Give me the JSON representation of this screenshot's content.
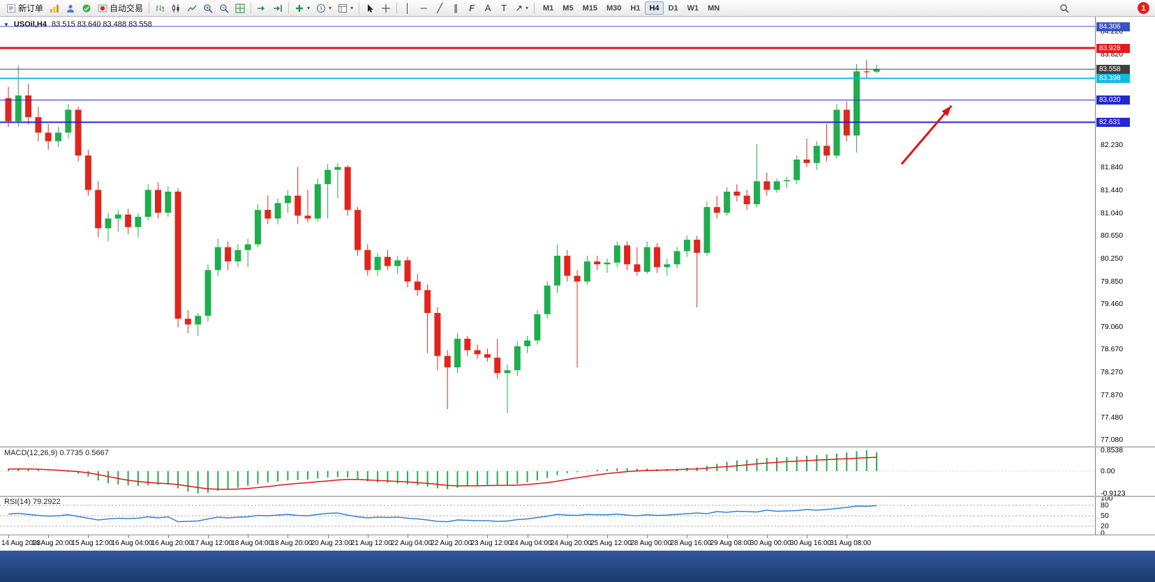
{
  "toolbar": {
    "new_order_label": "新订单",
    "autotrading_label": "自动交易",
    "timeframes": [
      "M1",
      "M5",
      "M15",
      "M30",
      "H1",
      "H4",
      "D1",
      "W1",
      "MN"
    ],
    "active_timeframe": "H4",
    "notification_count": "1"
  },
  "icons": {
    "collapse_arrow": "▼",
    "dropdown_caret": "▾",
    "vertical_line": "│",
    "horizontal_line": "─",
    "trendline": "╱",
    "channel": "∥",
    "fibonacci": "F",
    "text_tool": "A",
    "text_label_tool": "T",
    "arrow_tool": "↗"
  },
  "chart": {
    "symbol_period": "USOil,H4",
    "quotes": "83.515 83.640 83.488 83.558"
  },
  "indicator_labels": {
    "macd": "MACD(12,26,9) 0.7735 0.5667",
    "rsi": "RSI(14) 79.2922"
  },
  "price_scale": {
    "plain_labels": [
      "84.220",
      "83.820",
      "82.230",
      "81.840",
      "81.440",
      "81.040",
      "80.650",
      "80.250",
      "79.850",
      "79.460",
      "79.060",
      "78.670",
      "78.270",
      "77.870",
      "77.480",
      "77.080"
    ],
    "badges": [
      {
        "text": "84.306",
        "color": "#3b54c4"
      },
      {
        "text": "83.928",
        "color": "#e11b1b"
      },
      {
        "text": "83.558",
        "color": "#404040"
      },
      {
        "text": "83.398",
        "color": "#12b9e6"
      },
      {
        "text": "83.020",
        "color": "#2327d0"
      },
      {
        "text": "82.631",
        "color": "#2327d0"
      }
    ],
    "macd_scale": [
      "0.8538",
      "0.00",
      "-0.9123"
    ],
    "rsi_scale": [
      "100",
      "80",
      "50",
      "20",
      "0"
    ]
  },
  "chart_data": {
    "type": "candlestick",
    "symbol": "USOil",
    "period": "H4",
    "title": "USOil,H4",
    "current_ohlc": {
      "open": 83.515,
      "high": 83.64,
      "low": 83.488,
      "close": 83.558
    },
    "price_axis": {
      "min": 77.0,
      "max": 84.45
    },
    "x_labels": [
      "14 Aug 2023",
      "14 Aug 20:00",
      "15 Aug 12:00",
      "16 Aug 04:00",
      "16 Aug 20:00",
      "17 Aug 12:00",
      "18 Aug 04:00",
      "18 Aug 20:00",
      "20 Aug 23:00",
      "21 Aug 12:00",
      "22 Aug 04:00",
      "22 Aug 20:00",
      "23 Aug 12:00",
      "24 Aug 04:00",
      "24 Aug 20:00",
      "25 Aug 12:00",
      "28 Aug 00:00",
      "28 Aug 16:00",
      "29 Aug 08:00",
      "30 Aug 00:00",
      "30 Aug 16:00",
      "31 Aug 08:00"
    ],
    "hlines": [
      {
        "price": 84.306,
        "color": "#3b54c4",
        "width": 1
      },
      {
        "price": 83.928,
        "color": "#e11b1b",
        "width": 3
      },
      {
        "price": 83.558,
        "color": "#404040",
        "width": 1
      },
      {
        "price": 83.398,
        "color": "#12b9e6",
        "width": 2
      },
      {
        "price": 83.02,
        "color": "#2327d0",
        "width": 1
      },
      {
        "price": 82.631,
        "color": "#2327d0",
        "width": 2
      }
    ],
    "candles": [
      [
        83.05,
        83.25,
        82.55,
        82.65
      ],
      [
        82.65,
        83.62,
        82.55,
        83.1
      ],
      [
        83.1,
        83.3,
        82.6,
        82.72
      ],
      [
        82.72,
        82.9,
        82.3,
        82.45
      ],
      [
        82.45,
        82.6,
        82.15,
        82.3
      ],
      [
        82.3,
        82.55,
        82.2,
        82.45
      ],
      [
        82.45,
        82.95,
        82.35,
        82.85
      ],
      [
        82.85,
        82.9,
        81.95,
        82.05
      ],
      [
        82.05,
        82.15,
        81.35,
        81.45
      ],
      [
        81.45,
        81.6,
        80.62,
        80.78
      ],
      [
        80.78,
        81.05,
        80.55,
        80.95
      ],
      [
        80.95,
        81.1,
        80.72,
        81.02
      ],
      [
        81.02,
        81.12,
        80.68,
        80.8
      ],
      [
        80.8,
        81.05,
        80.62,
        80.98
      ],
      [
        80.98,
        81.55,
        80.92,
        81.45
      ],
      [
        81.45,
        81.58,
        80.95,
        81.05
      ],
      [
        81.05,
        81.52,
        80.98,
        81.42
      ],
      [
        81.42,
        81.48,
        79.05,
        79.2
      ],
      [
        79.2,
        79.35,
        78.95,
        79.1
      ],
      [
        79.1,
        79.3,
        78.9,
        79.25
      ],
      [
        79.25,
        80.15,
        79.15,
        80.05
      ],
      [
        80.05,
        80.6,
        79.95,
        80.45
      ],
      [
        80.45,
        80.55,
        80.05,
        80.2
      ],
      [
        80.2,
        80.5,
        80.1,
        80.4
      ],
      [
        80.4,
        80.6,
        80.1,
        80.5
      ],
      [
        80.5,
        81.2,
        80.45,
        81.1
      ],
      [
        81.1,
        81.35,
        80.85,
        80.95
      ],
      [
        80.95,
        81.3,
        80.85,
        81.22
      ],
      [
        81.22,
        81.45,
        81.05,
        81.35
      ],
      [
        81.35,
        81.85,
        80.85,
        81.0
      ],
      [
        81.0,
        81.45,
        80.88,
        80.95
      ],
      [
        80.95,
        81.65,
        80.9,
        81.55
      ],
      [
        81.55,
        81.9,
        80.95,
        81.8
      ],
      [
        81.8,
        81.92,
        81.3,
        81.85
      ],
      [
        81.85,
        81.88,
        81.0,
        81.1
      ],
      [
        81.1,
        81.15,
        80.3,
        80.4
      ],
      [
        80.4,
        80.5,
        79.95,
        80.05
      ],
      [
        80.05,
        80.35,
        79.95,
        80.28
      ],
      [
        80.28,
        80.4,
        80.05,
        80.12
      ],
      [
        80.12,
        80.3,
        79.98,
        80.22
      ],
      [
        80.22,
        80.28,
        79.75,
        79.85
      ],
      [
        79.85,
        79.98,
        79.6,
        79.7
      ],
      [
        79.7,
        79.8,
        78.6,
        79.3
      ],
      [
        79.3,
        79.4,
        78.3,
        78.55
      ],
      [
        78.55,
        78.65,
        77.62,
        78.35
      ],
      [
        78.35,
        78.95,
        78.25,
        78.85
      ],
      [
        78.85,
        78.9,
        78.55,
        78.65
      ],
      [
        78.65,
        78.75,
        78.5,
        78.58
      ],
      [
        78.58,
        78.68,
        78.45,
        78.52
      ],
      [
        78.52,
        78.85,
        78.15,
        78.25
      ],
      [
        78.25,
        78.4,
        77.55,
        78.3
      ],
      [
        78.3,
        78.8,
        78.2,
        78.72
      ],
      [
        78.72,
        78.9,
        78.6,
        78.82
      ],
      [
        78.82,
        79.35,
        78.75,
        79.28
      ],
      [
        79.28,
        79.85,
        79.2,
        79.78
      ],
      [
        79.78,
        80.5,
        79.65,
        80.3
      ],
      [
        80.3,
        80.4,
        79.85,
        79.95
      ],
      [
        79.95,
        80.05,
        78.35,
        79.85
      ],
      [
        79.85,
        80.3,
        79.8,
        80.2
      ],
      [
        80.2,
        80.3,
        80.05,
        80.15
      ],
      [
        80.15,
        80.25,
        80.0,
        80.18
      ],
      [
        80.18,
        80.55,
        80.1,
        80.48
      ],
      [
        80.48,
        80.55,
        80.05,
        80.15
      ],
      [
        80.15,
        80.45,
        79.95,
        80.02
      ],
      [
        80.02,
        80.55,
        79.98,
        80.45
      ],
      [
        80.45,
        80.52,
        80.0,
        80.1
      ],
      [
        80.1,
        80.25,
        79.95,
        80.15
      ],
      [
        80.15,
        80.45,
        80.08,
        80.38
      ],
      [
        80.38,
        80.65,
        80.28,
        80.58
      ],
      [
        80.58,
        80.65,
        79.4,
        80.35
      ],
      [
        80.35,
        81.25,
        80.3,
        81.15
      ],
      [
        81.15,
        81.35,
        80.95,
        81.05
      ],
      [
        81.05,
        81.5,
        81.0,
        81.42
      ],
      [
        81.42,
        81.55,
        81.25,
        81.35
      ],
      [
        81.35,
        81.45,
        81.1,
        81.2
      ],
      [
        81.2,
        82.25,
        81.15,
        81.6
      ],
      [
        81.6,
        81.75,
        81.35,
        81.45
      ],
      [
        81.45,
        81.65,
        81.4,
        81.6
      ],
      [
        81.6,
        81.68,
        81.48,
        81.62
      ],
      [
        81.62,
        82.05,
        81.55,
        81.98
      ],
      [
        81.98,
        82.35,
        81.85,
        81.92
      ],
      [
        81.92,
        82.3,
        81.8,
        82.22
      ],
      [
        82.22,
        82.6,
        81.95,
        82.05
      ],
      [
        82.05,
        82.95,
        82.0,
        82.85
      ],
      [
        82.85,
        83.0,
        82.3,
        82.4
      ],
      [
        82.4,
        83.65,
        82.1,
        83.52
      ],
      [
        83.52,
        83.72,
        83.4,
        83.51
      ],
      [
        83.515,
        83.64,
        83.488,
        83.558
      ]
    ],
    "macd": {
      "label": "MACD(12,26,9)",
      "main_value": 0.7735,
      "signal_value": 0.5667,
      "ylim": [
        -0.9123,
        0.8538
      ],
      "histogram": [
        0.1,
        0.12,
        0.1,
        0.06,
        0.02,
        0.0,
        -0.03,
        -0.1,
        -0.22,
        -0.38,
        -0.5,
        -0.55,
        -0.58,
        -0.6,
        -0.58,
        -0.56,
        -0.55,
        -0.7,
        -0.84,
        -0.9123,
        -0.88,
        -0.8,
        -0.74,
        -0.68,
        -0.6,
        -0.52,
        -0.46,
        -0.42,
        -0.38,
        -0.36,
        -0.34,
        -0.3,
        -0.26,
        -0.24,
        -0.26,
        -0.34,
        -0.42,
        -0.46,
        -0.48,
        -0.5,
        -0.54,
        -0.58,
        -0.64,
        -0.7,
        -0.74,
        -0.68,
        -0.62,
        -0.58,
        -0.56,
        -0.55,
        -0.56,
        -0.52,
        -0.46,
        -0.38,
        -0.28,
        -0.16,
        -0.08,
        -0.04,
        0.02,
        0.06,
        0.08,
        0.12,
        0.12,
        0.1,
        0.1,
        0.08,
        0.08,
        0.1,
        0.14,
        0.16,
        0.22,
        0.3,
        0.38,
        0.44,
        0.46,
        0.52,
        0.54,
        0.56,
        0.57,
        0.6,
        0.63,
        0.66,
        0.68,
        0.72,
        0.76,
        0.82,
        0.8538,
        0.7735
      ],
      "signal": [
        0.08,
        0.09,
        0.09,
        0.08,
        0.06,
        0.04,
        0.01,
        -0.02,
        -0.07,
        -0.14,
        -0.22,
        -0.3,
        -0.37,
        -0.42,
        -0.46,
        -0.49,
        -0.51,
        -0.55,
        -0.61,
        -0.67,
        -0.72,
        -0.74,
        -0.74,
        -0.73,
        -0.71,
        -0.67,
        -0.63,
        -0.58,
        -0.54,
        -0.5,
        -0.47,
        -0.43,
        -0.4,
        -0.36,
        -0.34,
        -0.34,
        -0.36,
        -0.38,
        -0.4,
        -0.42,
        -0.44,
        -0.47,
        -0.5,
        -0.54,
        -0.58,
        -0.6,
        -0.6,
        -0.6,
        -0.59,
        -0.58,
        -0.58,
        -0.57,
        -0.55,
        -0.51,
        -0.47,
        -0.41,
        -0.34,
        -0.27,
        -0.21,
        -0.15,
        -0.1,
        -0.06,
        -0.02,
        0.01,
        0.03,
        0.04,
        0.05,
        0.06,
        0.08,
        0.09,
        0.12,
        0.16,
        0.18,
        0.22,
        0.26,
        0.3,
        0.33,
        0.36,
        0.39,
        0.41,
        0.43,
        0.45,
        0.47,
        0.49,
        0.51,
        0.53,
        0.55,
        0.5667
      ]
    },
    "rsi": {
      "label": "RSI(14)",
      "current_value": 79.2922,
      "ylim": [
        0,
        100
      ],
      "levels": [
        80,
        50,
        20
      ],
      "values": [
        55,
        57,
        54,
        51,
        49,
        50,
        53,
        48,
        43,
        38,
        41,
        43,
        42,
        43,
        47,
        44,
        47,
        33,
        34,
        35,
        41,
        46,
        44,
        46,
        47,
        51,
        50,
        52,
        54,
        51,
        50,
        54,
        57,
        58,
        52,
        47,
        44,
        46,
        45,
        46,
        43,
        41,
        38,
        34,
        33,
        38,
        37,
        36,
        36,
        34,
        35,
        39,
        41,
        45,
        49,
        54,
        52,
        51,
        54,
        53,
        53,
        55,
        52,
        50,
        53,
        51,
        52,
        54,
        56,
        58,
        56,
        62,
        60,
        63,
        62,
        61,
        66,
        63,
        64,
        65,
        68,
        66,
        68,
        71,
        74,
        78,
        77,
        79.29
      ]
    },
    "arrow": {
      "from": {
        "bar": 89.5,
        "price": 81.9
      },
      "to": {
        "bar": 94.5,
        "price": 82.92
      },
      "color": "#e01212"
    },
    "colors": {
      "up": "#1fae4d",
      "down": "#e0251c",
      "macd_histogram": "#1fae4d",
      "macd_signal": "#e01212",
      "rsi_line": "#2f80d0"
    }
  }
}
